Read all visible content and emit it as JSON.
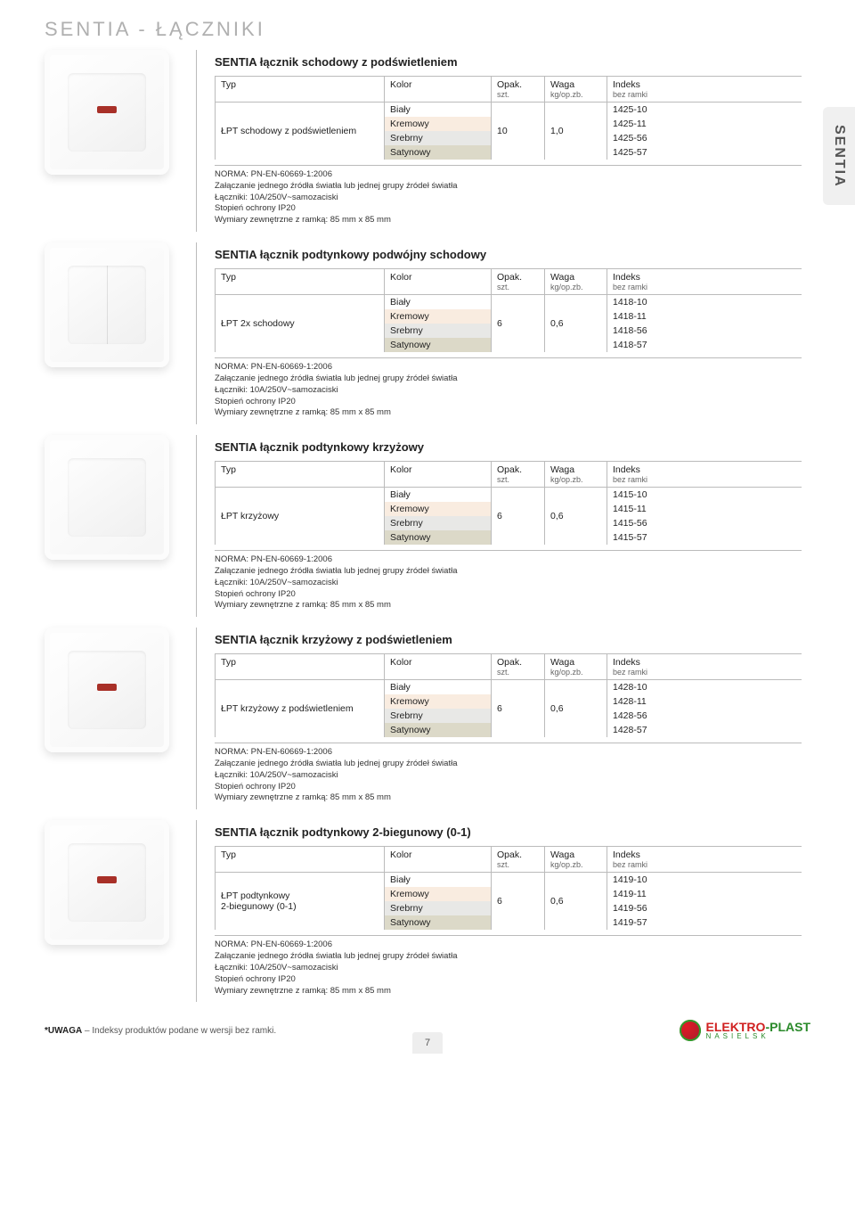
{
  "page_title": "SENTIA - ŁĄCZNIKI",
  "side_tab": "SENTIA",
  "page_number": "7",
  "footer_note_bold": "*UWAGA",
  "footer_note_text": " – Indeksy produktów podane w wersji bez ramki.",
  "logo_red": "ELEKTRO",
  "logo_dash": "-",
  "logo_green": "PLAST",
  "logo_sub": "NASIELSK",
  "table_headers": {
    "typ": "Typ",
    "kolor": "Kolor",
    "opak": "Opak.",
    "opak_sub": "szt.",
    "waga": "Waga",
    "waga_sub": "kg/op.zb.",
    "indeks": "Indeks",
    "indeks_sub": "bez ramki"
  },
  "colors": {
    "bialy": "Biały",
    "kremowy": "Kremowy",
    "srebrny": "Srebrny",
    "satynowy": "Satynowy"
  },
  "row_bg": {
    "bialy": "#ffffff",
    "kremowy": "#f9ece0",
    "srebrny": "#e8e8e6",
    "satynowy": "#dcd9c8"
  },
  "notes": {
    "norma": "NORMA: PN-EN-60669-1:2006",
    "funkcja": "Załączanie jednego źródła światła lub jednej grupy źródeł światła",
    "laczniki": "Łączniki: 10A/250V~samozaciski",
    "stopien": "Stopień ochrony IP20",
    "wymiary": "Wymiary zewnętrzne z ramką: 85 mm x 85 mm"
  },
  "products": [
    {
      "title": "SENTIA łącznik schodowy z podświetleniem",
      "typ": "ŁPT schodowy z podświetleniem",
      "opak": "10",
      "waga": "1,0",
      "led": true,
      "double": false,
      "indeksy": {
        "bialy": "1425-10",
        "kremowy": "1425-11",
        "srebrny": "1425-56",
        "satynowy": "1425-57"
      }
    },
    {
      "title": "SENTIA łącznik podtynkowy podwójny schodowy",
      "typ": "ŁPT 2x schodowy",
      "opak": "6",
      "waga": "0,6",
      "led": false,
      "double": true,
      "indeksy": {
        "bialy": "1418-10",
        "kremowy": "1418-11",
        "srebrny": "1418-56",
        "satynowy": "1418-57"
      }
    },
    {
      "title": "SENTIA łącznik podtynkowy krzyżowy",
      "typ": "ŁPT krzyżowy",
      "opak": "6",
      "waga": "0,6",
      "led": false,
      "double": false,
      "indeksy": {
        "bialy": "1415-10",
        "kremowy": "1415-11",
        "srebrny": "1415-56",
        "satynowy": "1415-57"
      }
    },
    {
      "title": "SENTIA łącznik krzyżowy z podświetleniem",
      "typ": "ŁPT krzyżowy z podświetleniem",
      "opak": "6",
      "waga": "0,6",
      "led": true,
      "double": false,
      "indeksy": {
        "bialy": "1428-10",
        "kremowy": "1428-11",
        "srebrny": "1428-56",
        "satynowy": "1428-57"
      }
    },
    {
      "title": "SENTIA łącznik podtynkowy 2-biegunowy (0-1)",
      "typ": "ŁPT podtynkowy\n2-biegunowy (0-1)",
      "opak": "6",
      "waga": "0,6",
      "led": true,
      "double": false,
      "indeksy": {
        "bialy": "1419-10",
        "kremowy": "1419-11",
        "srebrny": "1419-56",
        "satynowy": "1419-57"
      }
    }
  ]
}
